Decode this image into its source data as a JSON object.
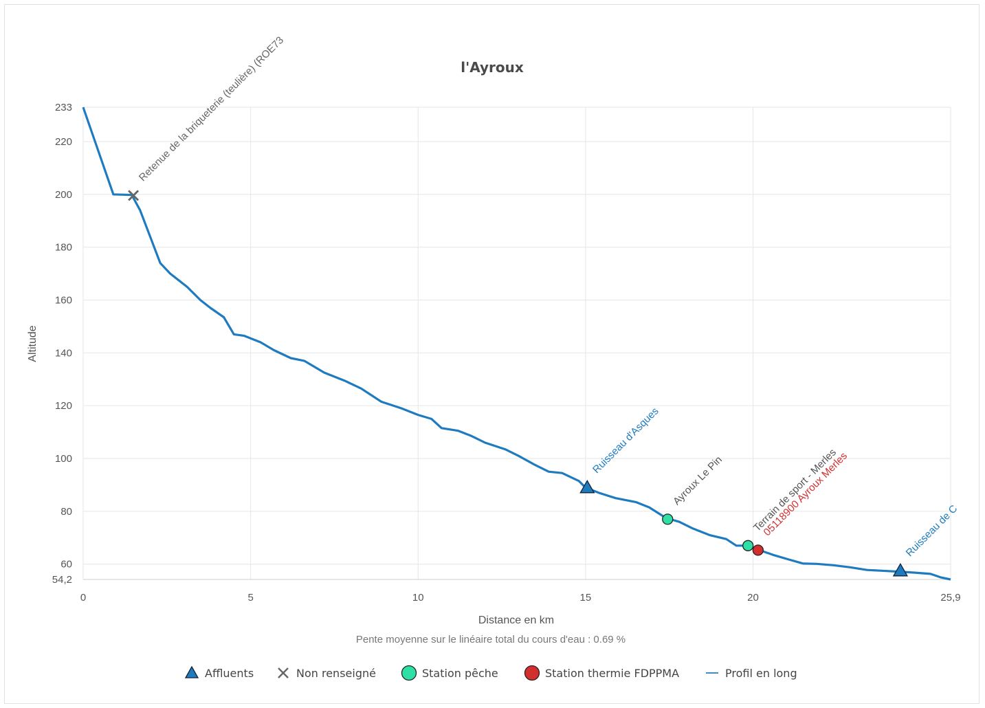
{
  "chart_data": {
    "type": "line",
    "title": "l'Ayroux",
    "xlabel": "Distance en km",
    "ylabel": "Altitude",
    "subtitle": "Pente moyenne sur le linéaire total du cours d'eau : 0.69 %",
    "xlim": [
      0,
      25.9
    ],
    "ylim": [
      54.2,
      233
    ],
    "x_ticks": [
      "0",
      "5",
      "10",
      "15",
      "20",
      "25,9"
    ],
    "y_ticks": [
      "54,2",
      "60",
      "80",
      "100",
      "120",
      "140",
      "160",
      "180",
      "200",
      "220",
      "233"
    ],
    "grid": true,
    "legend_position": "bottom",
    "series": [
      {
        "name": "Profil en long",
        "color": "#1f7bbf",
        "points": [
          [
            0,
            233
          ],
          [
            0.9,
            200
          ],
          [
            1.45,
            199.8
          ],
          [
            1.7,
            194
          ],
          [
            2.0,
            184
          ],
          [
            2.3,
            174
          ],
          [
            2.6,
            170
          ],
          [
            3.1,
            165
          ],
          [
            3.5,
            160
          ],
          [
            3.8,
            157
          ],
          [
            4.2,
            153.5
          ],
          [
            4.5,
            147
          ],
          [
            4.8,
            146.5
          ],
          [
            5.3,
            144
          ],
          [
            5.7,
            141
          ],
          [
            6.2,
            138
          ],
          [
            6.6,
            137
          ],
          [
            7.2,
            132.5
          ],
          [
            7.8,
            129.5
          ],
          [
            8.3,
            126.5
          ],
          [
            8.9,
            121.5
          ],
          [
            9.5,
            119
          ],
          [
            10.0,
            116.5
          ],
          [
            10.4,
            115
          ],
          [
            10.7,
            111.5
          ],
          [
            11.2,
            110.5
          ],
          [
            11.6,
            108.5
          ],
          [
            12.0,
            106
          ],
          [
            12.6,
            103.5
          ],
          [
            13.0,
            101
          ],
          [
            13.5,
            97.5
          ],
          [
            13.9,
            95
          ],
          [
            14.3,
            94.5
          ],
          [
            14.8,
            91.5
          ],
          [
            15.0,
            89
          ],
          [
            15.4,
            87
          ],
          [
            15.9,
            85
          ],
          [
            16.5,
            83.5
          ],
          [
            16.9,
            81.5
          ],
          [
            17.4,
            77.5
          ],
          [
            17.8,
            76
          ],
          [
            18.2,
            73.5
          ],
          [
            18.7,
            71
          ],
          [
            19.2,
            69.5
          ],
          [
            19.5,
            67
          ],
          [
            19.85,
            67
          ],
          [
            20.15,
            65.5
          ],
          [
            20.6,
            63.5
          ],
          [
            21.0,
            62
          ],
          [
            21.5,
            60.2
          ],
          [
            21.9,
            60.1
          ],
          [
            22.4,
            59.6
          ],
          [
            22.9,
            58.8
          ],
          [
            23.4,
            57.8
          ],
          [
            23.85,
            57.5
          ],
          [
            24.3,
            57.2
          ],
          [
            24.8,
            56.8
          ],
          [
            25.3,
            56.3
          ],
          [
            25.6,
            55
          ],
          [
            25.9,
            54.2
          ]
        ]
      }
    ],
    "markers": [
      {
        "category": "Affluents",
        "x": 15.05,
        "y": 89,
        "label": "Ruisseau d'Asques",
        "label_color": "#1f7bbf"
      },
      {
        "category": "Affluents",
        "x": 24.4,
        "y": 57.5,
        "label": "Ruisseau de C",
        "label_color": "#1f7bbf"
      },
      {
        "category": "Non renseigné",
        "x": 1.5,
        "y": 199.6,
        "label": "Retenue de la briqueterie (teulière) (ROE73",
        "label_color": "#666666"
      },
      {
        "category": "Station pêche",
        "x": 17.45,
        "y": 77,
        "label": "Ayroux Le Pin",
        "label_color": "#555555"
      },
      {
        "category": "Station pêche",
        "x": 19.85,
        "y": 67,
        "label": "Terrain de sport - Merles",
        "label_color": "#555555"
      },
      {
        "category": "Station thermie FDPPMA",
        "x": 20.15,
        "y": 65.3,
        "label": "05118900 Ayroux Merles",
        "label_color": "#d32f2f"
      }
    ],
    "legend": [
      {
        "label": "Affluents",
        "icon": "triangle",
        "color": "#1f7bbf"
      },
      {
        "label": "Non renseigné",
        "icon": "cross",
        "color": "#666666"
      },
      {
        "label": "Station pêche",
        "icon": "circle",
        "color": "#2ee0a6"
      },
      {
        "label": "Station thermie FDPPMA",
        "icon": "circle",
        "color": "#d32f2f"
      },
      {
        "label": "Profil en long",
        "icon": "line",
        "color": "#1f7bbf"
      }
    ]
  }
}
